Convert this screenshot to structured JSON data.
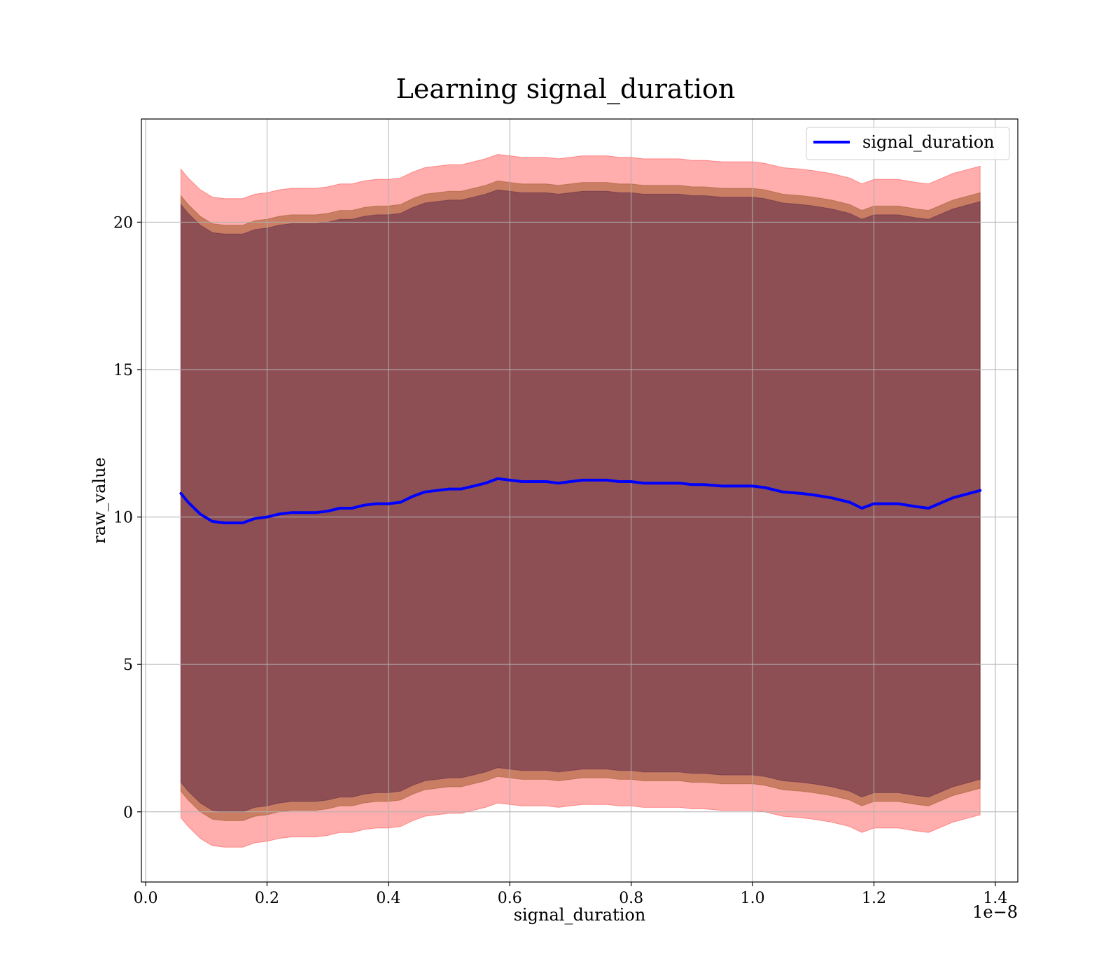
{
  "chart_data": {
    "type": "line",
    "title": "Learning signal_duration",
    "xlabel": "signal_duration",
    "ylabel": "raw_value",
    "x_offset_label": "1e−8",
    "xlim": [
      -0.007,
      1.437
    ],
    "ylim": [
      -2.38,
      23.5
    ],
    "x_ticks": [
      0.0,
      0.2,
      0.4,
      0.6,
      0.8,
      1.0,
      1.2,
      1.4
    ],
    "x_tick_labels": [
      "0.0",
      "0.2",
      "0.4",
      "0.6",
      "0.8",
      "1.0",
      "1.2",
      "1.4"
    ],
    "y_ticks": [
      0,
      5,
      10,
      15,
      20
    ],
    "y_tick_labels": [
      "0",
      "5",
      "10",
      "15",
      "20"
    ],
    "grid": true,
    "legend": {
      "position": "upper right",
      "entries": [
        "signal_duration"
      ]
    },
    "colors": {
      "line": "#0000ff",
      "band_outer": "#ff0000",
      "band_middle": "#7f3f00",
      "band_inner": "#3f0f3f"
    },
    "x": [
      0.058,
      0.07,
      0.09,
      0.11,
      0.13,
      0.16,
      0.18,
      0.2,
      0.22,
      0.24,
      0.26,
      0.28,
      0.3,
      0.32,
      0.34,
      0.36,
      0.38,
      0.4,
      0.42,
      0.44,
      0.46,
      0.48,
      0.5,
      0.52,
      0.54,
      0.56,
      0.58,
      0.6,
      0.62,
      0.64,
      0.66,
      0.68,
      0.7,
      0.72,
      0.74,
      0.76,
      0.78,
      0.8,
      0.82,
      0.84,
      0.86,
      0.88,
      0.9,
      0.92,
      0.95,
      0.98,
      1.0,
      1.02,
      1.05,
      1.08,
      1.1,
      1.13,
      1.16,
      1.18,
      1.2,
      1.24,
      1.27,
      1.29,
      1.33,
      1.375
    ],
    "series": [
      {
        "name": "signal_duration",
        "values": [
          10.8,
          10.5,
          10.1,
          9.85,
          9.8,
          9.8,
          9.95,
          10.0,
          10.1,
          10.15,
          10.15,
          10.15,
          10.2,
          10.3,
          10.3,
          10.4,
          10.45,
          10.45,
          10.5,
          10.7,
          10.85,
          10.9,
          10.95,
          10.95,
          11.05,
          11.15,
          11.3,
          11.25,
          11.2,
          11.2,
          11.2,
          11.15,
          11.2,
          11.25,
          11.25,
          11.25,
          11.2,
          11.2,
          11.15,
          11.15,
          11.15,
          11.15,
          11.1,
          11.1,
          11.05,
          11.05,
          11.05,
          11.0,
          10.85,
          10.8,
          10.75,
          10.65,
          10.5,
          10.3,
          10.45,
          10.45,
          10.35,
          10.3,
          10.65,
          10.9
        ]
      }
    ],
    "bands": [
      {
        "level": "outer",
        "offset_above": 11.0,
        "offset_below": 11.0
      },
      {
        "level": "middle",
        "offset_above": 10.1,
        "offset_below": 10.1
      },
      {
        "level": "inner",
        "offset_above": 9.8,
        "offset_below": 9.8
      }
    ]
  }
}
